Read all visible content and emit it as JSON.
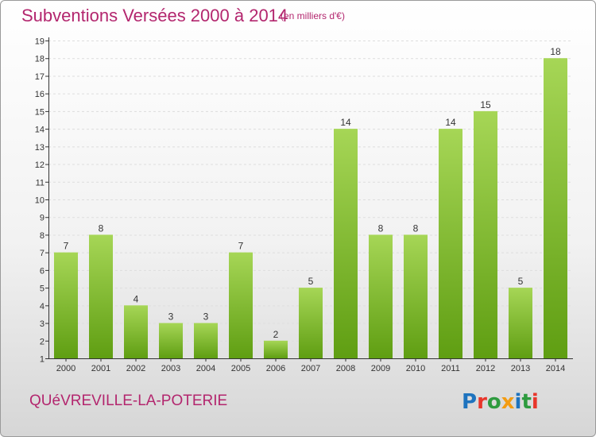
{
  "header": {
    "title": "Subventions Versées 2000 à 2014",
    "subtitle": "(en milliers d'€)"
  },
  "footer": {
    "commune": "QUéVREVILLE-LA-POTERIE",
    "logo_text": "Proxiti",
    "logo_colors": [
      "#1e73be",
      "#e8362b",
      "#2e9b3f",
      "#f39c12",
      "#1e73be",
      "#2e9b3f",
      "#e8362b"
    ]
  },
  "colors": {
    "title": "#b3266e",
    "bar_light": "#a6d656",
    "bar_dark": "#5f9e12",
    "axis": "#333333",
    "grid": "#dddddd"
  },
  "chart_data": {
    "type": "bar",
    "title": "Subventions Versées 2000 à 2014",
    "subtitle": "(en milliers d'€)",
    "xlabel": "",
    "ylabel": "",
    "categories": [
      "2000",
      "2001",
      "2002",
      "2003",
      "2004",
      "2005",
      "2006",
      "2007",
      "2008",
      "2009",
      "2010",
      "2011",
      "2012",
      "2013",
      "2014"
    ],
    "values": [
      7,
      8,
      4,
      3,
      3,
      7,
      2,
      5,
      14,
      8,
      8,
      14,
      15,
      5,
      18
    ],
    "ylim": [
      1,
      19
    ],
    "yticks": [
      1,
      2,
      3,
      4,
      5,
      6,
      7,
      8,
      9,
      10,
      11,
      12,
      13,
      14,
      15,
      16,
      17,
      18,
      19
    ],
    "grid": true,
    "data_labels": true
  }
}
